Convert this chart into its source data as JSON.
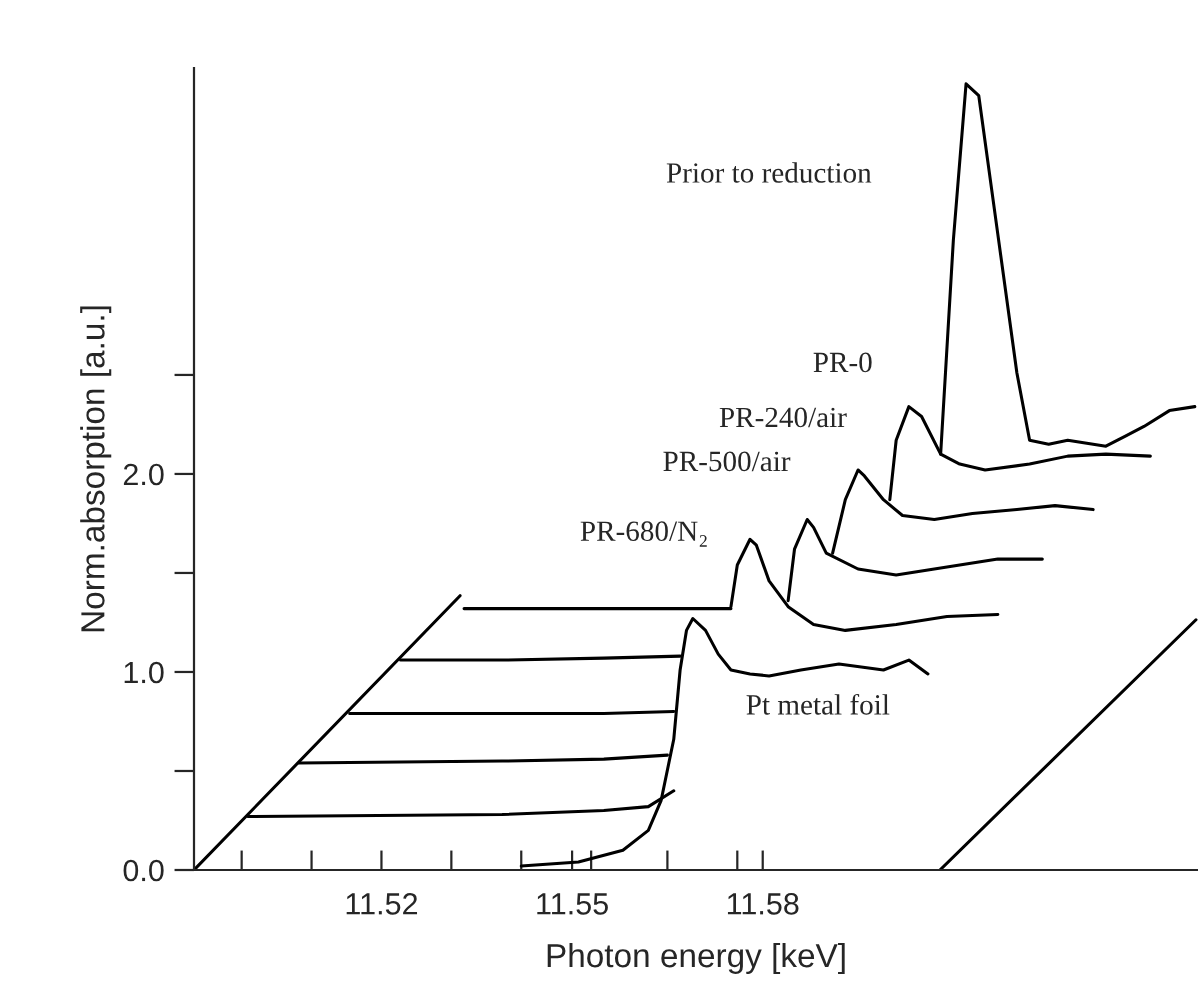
{
  "chart_data": {
    "type": "line",
    "xlabel": "Photon energy [keV]",
    "ylabel": "Norm.absorption [a.u.]",
    "xlim": [
      11.4905,
      11.6485
    ],
    "ylim": [
      0,
      4.05
    ],
    "xticks": [
      {
        "value": 11.498,
        "label": null
      },
      {
        "value": 11.509,
        "label": null
      },
      11.52,
      {
        "value": 11.531,
        "label": null
      },
      {
        "value": 11.542,
        "label": null
      },
      11.55,
      {
        "value": 11.553,
        "label": null
      },
      {
        "value": 11.565,
        "label": null
      },
      {
        "value": 11.576,
        "label": null
      },
      11.58
    ],
    "yticks": [
      {
        "value": 0,
        "label": "0.0"
      },
      {
        "value": 0.5,
        "label": null
      },
      {
        "value": 1,
        "label": "1.0"
      },
      {
        "value": 1.5,
        "label": null
      },
      {
        "value": 2,
        "label": "2.0"
      },
      {
        "value": 2.5,
        "label": null
      }
    ],
    "series": [
      {
        "name": "Pt metal foil",
        "color": "#000000",
        "x": [
          11.542,
          11.551,
          11.558,
          11.562,
          11.564,
          11.566,
          11.567,
          11.568,
          11.569,
          11.571,
          11.573,
          11.575,
          11.578,
          11.581,
          11.586,
          11.592,
          11.599,
          11.603,
          11.606
        ],
        "values": [
          0.02,
          0.04,
          0.1,
          0.2,
          0.35,
          0.66,
          1.01,
          1.21,
          1.27,
          1.21,
          1.09,
          1.01,
          0.99,
          0.98,
          1.01,
          1.04,
          1.01,
          1.06,
          0.99
        ]
      },
      {
        "name": "PR-680/N₂",
        "color": "#000000",
        "x": [
          11.499,
          11.539,
          11.555,
          11.562,
          11.566,
          11.57,
          11.575,
          11.576,
          11.578,
          11.579,
          11.581,
          11.584,
          11.588,
          11.593,
          11.601,
          11.609,
          11.617
        ],
        "values": [
          0.27,
          0.28,
          0.3,
          0.32,
          0.4,
          null,
          1.33,
          1.54,
          1.67,
          1.64,
          1.46,
          1.33,
          1.24,
          1.21,
          1.24,
          1.28,
          1.29
        ]
      },
      {
        "name": "PR-500/air",
        "color": "#000000",
        "x": [
          11.507,
          11.539,
          11.555,
          11.565,
          11.574,
          11.584,
          11.585,
          11.587,
          11.588,
          11.59,
          11.595,
          11.601,
          11.609,
          11.617,
          11.624
        ],
        "values": [
          0.54,
          0.55,
          0.56,
          0.58,
          null,
          1.36,
          1.62,
          1.77,
          1.73,
          1.6,
          1.52,
          1.49,
          1.53,
          1.57,
          1.57
        ]
      },
      {
        "name": "PR-240/air",
        "color": "#000000",
        "x": [
          11.515,
          11.539,
          11.555,
          11.566,
          11.58,
          11.591,
          11.593,
          11.595,
          11.596,
          11.599,
          11.602,
          11.607,
          11.613,
          11.62,
          11.626,
          11.632
        ],
        "values": [
          0.79,
          0.79,
          0.79,
          0.8,
          null,
          1.6,
          1.87,
          2.02,
          1.99,
          1.87,
          1.79,
          1.77,
          1.8,
          1.82,
          1.84,
          1.82
        ]
      },
      {
        "name": "PR-0",
        "color": "#000000",
        "x": [
          11.523,
          11.539,
          11.555,
          11.567,
          11.585,
          11.6,
          11.601,
          11.603,
          11.605,
          11.608,
          11.611,
          11.615,
          11.622,
          11.628,
          11.634,
          11.641
        ],
        "values": [
          1.06,
          1.06,
          1.07,
          1.08,
          null,
          1.87,
          2.17,
          2.34,
          2.29,
          2.1,
          2.05,
          2.02,
          2.05,
          2.09,
          2.1,
          2.09
        ]
      },
      {
        "name": "Prior to reduction",
        "color": "#000000",
        "x": [
          11.533,
          11.555,
          11.575,
          11.59,
          11.608,
          11.61,
          11.612,
          11.614,
          11.617,
          11.62,
          11.622,
          11.625,
          11.628,
          11.634,
          11.637,
          11.64,
          11.644,
          11.648
        ],
        "values": [
          1.32,
          1.32,
          1.32,
          null,
          2.1,
          3.18,
          3.97,
          3.91,
          3.21,
          2.51,
          2.17,
          2.15,
          2.17,
          2.14,
          2.19,
          2.24,
          2.32,
          2.34
        ]
      }
    ]
  }
}
